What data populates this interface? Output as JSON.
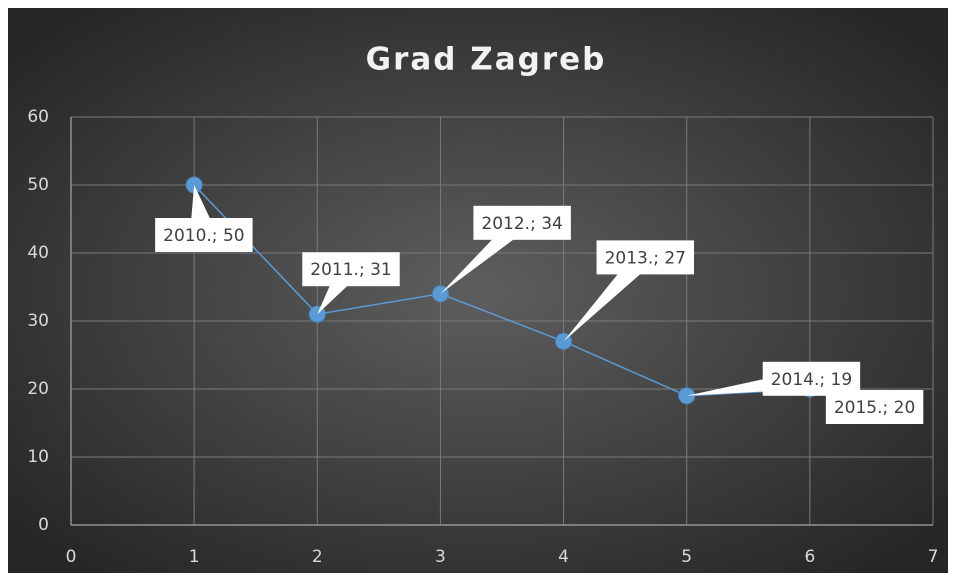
{
  "chart_data": {
    "type": "line",
    "title": "Grad Zagreb",
    "x": [
      1,
      2,
      3,
      4,
      5,
      6
    ],
    "series": [
      {
        "color": "#5b9bd5",
        "values": [
          50,
          31,
          34,
          27,
          19,
          20
        ],
        "value_labels": [
          "2010.; 50",
          "2011.; 31",
          "2012.; 34",
          "2013.; 27",
          "2014.; 19",
          "2015.; 20"
        ]
      }
    ],
    "xlim": [
      0,
      7
    ],
    "xticks": [
      0,
      1,
      2,
      3,
      4,
      5,
      6,
      7
    ],
    "ylim": [
      0,
      60
    ],
    "yticks": [
      0,
      10,
      20,
      30,
      40,
      50,
      60
    ],
    "grid": true
  }
}
